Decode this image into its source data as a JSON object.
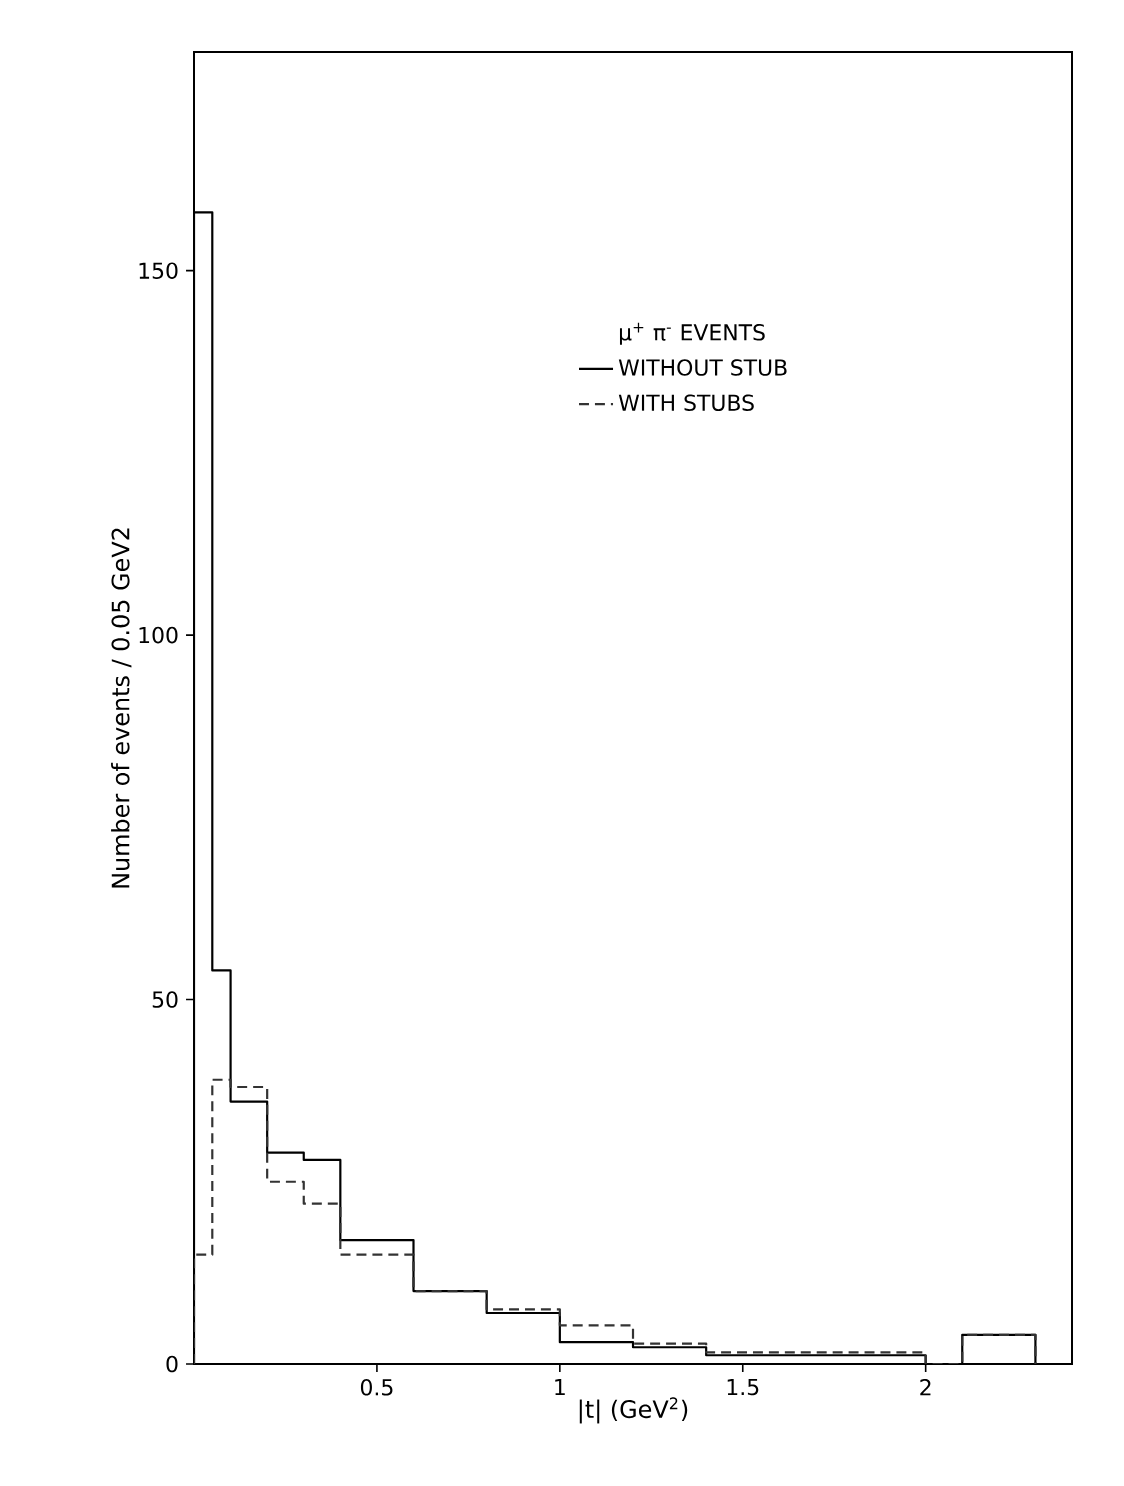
{
  "chart_data": {
    "type": "histogram",
    "xlabel": "|t| (GeV$^{2}$)",
    "ylabel": "Number of events / 0.05 GeV2",
    "legend_title": "μ$^{+}$ π$^{-}$ EVENTS",
    "bins": [
      0,
      0.05,
      0.1,
      0.2,
      0.3,
      0.4,
      0.6,
      0.8,
      1.0,
      1.2,
      1.4,
      2.0,
      2.1,
      2.3
    ],
    "series": [
      {
        "name": "WITHOUT STUB",
        "color": "#000000",
        "line_style": "solid",
        "values": [
          158,
          54,
          36,
          29,
          28,
          17,
          10,
          7,
          3,
          2.3,
          1.2,
          null,
          4
        ]
      },
      {
        "name": "WITH STUBS",
        "color": "#333333",
        "line_style": "dashed",
        "values": [
          15,
          39,
          38,
          25,
          22,
          15,
          10,
          7.5,
          5.3,
          2.8,
          1.6,
          null,
          4
        ]
      }
    ],
    "xlim": [
      0,
      2.4
    ],
    "ylim": [
      0,
      180
    ],
    "xticks": [
      0.5,
      1,
      1.5,
      2
    ],
    "yticks": [
      0,
      50,
      100,
      150
    ],
    "grid": false,
    "legend": "top"
  }
}
